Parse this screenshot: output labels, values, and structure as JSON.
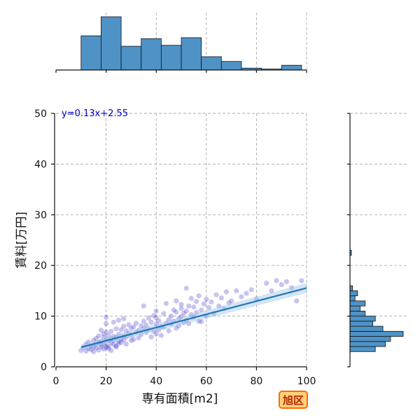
{
  "chart_data": {
    "type": "scatter",
    "xlabel": "専有面積[m2]",
    "ylabel": "賃料[万円]",
    "xlim": [
      0,
      100
    ],
    "ylim": [
      0,
      50
    ],
    "x_ticks": [
      "0",
      "20",
      "40",
      "60",
      "80",
      "100"
    ],
    "y_ticks": [
      "0",
      "10",
      "20",
      "30",
      "40",
      "50"
    ],
    "grid": true,
    "regression": {
      "slope": 0.13,
      "intercept": 2.55,
      "label": "y=0.13x+2.55",
      "x_range": [
        10,
        100
      ]
    },
    "marginal_x_histogram": {
      "bin_edges": [
        10,
        18,
        26,
        34,
        42,
        50,
        58,
        66,
        74,
        82,
        90,
        98
      ],
      "counts": [
        36,
        56,
        25,
        33,
        26,
        34,
        14,
        9,
        2,
        1,
        5
      ]
    },
    "marginal_y_histogram": {
      "bin_edges": [
        3,
        4,
        5,
        6,
        7,
        8,
        9,
        10,
        11,
        12,
        13,
        14,
        15,
        16,
        17,
        18,
        19,
        20,
        21,
        22,
        23
      ],
      "counts": [
        10,
        14,
        16,
        21,
        13,
        9,
        10,
        6,
        4,
        6,
        2,
        3,
        1,
        0,
        0,
        0,
        0,
        0,
        0,
        0
      ]
    },
    "point_color": "#3a2bc8",
    "line_color": "#1f77b4",
    "hist_color": "#4f93c6",
    "points": [
      [
        10,
        3.2
      ],
      [
        11,
        3.8
      ],
      [
        12,
        4.5
      ],
      [
        12,
        3.1
      ],
      [
        13,
        3.6
      ],
      [
        13,
        4.9
      ],
      [
        14,
        3.4
      ],
      [
        14,
        4.1
      ],
      [
        15,
        5.2
      ],
      [
        15,
        3.0
      ],
      [
        15,
        4.0
      ],
      [
        16,
        3.7
      ],
      [
        16,
        5.6
      ],
      [
        16,
        4.4
      ],
      [
        17,
        3.3
      ],
      [
        17,
        4.8
      ],
      [
        17,
        6.1
      ],
      [
        18,
        3.9
      ],
      [
        18,
        5.0
      ],
      [
        18,
        4.3
      ],
      [
        18,
        7.2
      ],
      [
        19,
        3.5
      ],
      [
        19,
        4.6
      ],
      [
        19,
        5.8
      ],
      [
        19,
        6.5
      ],
      [
        20,
        3.8
      ],
      [
        20,
        4.2
      ],
      [
        20,
        5.4
      ],
      [
        20,
        6.9
      ],
      [
        20,
        8.5
      ],
      [
        20,
        9.8
      ],
      [
        21,
        4.0
      ],
      [
        21,
        5.1
      ],
      [
        21,
        6.2
      ],
      [
        21,
        3.6
      ],
      [
        22,
        4.7
      ],
      [
        22,
        5.5
      ],
      [
        22,
        7.0
      ],
      [
        22,
        3.2
      ],
      [
        23,
        4.4
      ],
      [
        23,
        6.0
      ],
      [
        23,
        8.8
      ],
      [
        23,
        5.2
      ],
      [
        24,
        4.1
      ],
      [
        24,
        5.8
      ],
      [
        24,
        7.5
      ],
      [
        24,
        3.9
      ],
      [
        25,
        5.0
      ],
      [
        25,
        6.4
      ],
      [
        25,
        4.6
      ],
      [
        25,
        9.2
      ],
      [
        26,
        5.5
      ],
      [
        26,
        7.3
      ],
      [
        26,
        4.8
      ],
      [
        27,
        6.1
      ],
      [
        27,
        8.0
      ],
      [
        27,
        5.3
      ],
      [
        27,
        9.5
      ],
      [
        28,
        5.9
      ],
      [
        28,
        7.1
      ],
      [
        28,
        4.5
      ],
      [
        29,
        6.6
      ],
      [
        29,
        8.3
      ],
      [
        30,
        5.2
      ],
      [
        30,
        7.6
      ],
      [
        30,
        6.2
      ],
      [
        31,
        7.9
      ],
      [
        31,
        5.4
      ],
      [
        32,
        6.8
      ],
      [
        32,
        8.6
      ],
      [
        33,
        7.2
      ],
      [
        33,
        5.7
      ],
      [
        34,
        8.1
      ],
      [
        34,
        6.4
      ],
      [
        35,
        7.5
      ],
      [
        35,
        9.0
      ],
      [
        35,
        12.0
      ],
      [
        36,
        6.8
      ],
      [
        36,
        8.2
      ],
      [
        37,
        7.4
      ],
      [
        37,
        9.6
      ],
      [
        38,
        5.9
      ],
      [
        38,
        8.8
      ],
      [
        39,
        7.0
      ],
      [
        39,
        10.1
      ],
      [
        40,
        6.5
      ],
      [
        40,
        8.4
      ],
      [
        40,
        9.7
      ],
      [
        40,
        11.0
      ],
      [
        41,
        7.3
      ],
      [
        41,
        9.1
      ],
      [
        42,
        8.0
      ],
      [
        42,
        6.2
      ],
      [
        43,
        10.5
      ],
      [
        43,
        7.8
      ],
      [
        44,
        8.6
      ],
      [
        44,
        12.5
      ],
      [
        45,
        9.3
      ],
      [
        45,
        7.1
      ],
      [
        46,
        10.0
      ],
      [
        46,
        8.4
      ],
      [
        47,
        11.2
      ],
      [
        47,
        9.0
      ],
      [
        48,
        7.6
      ],
      [
        48,
        10.8
      ],
      [
        48,
        13.0
      ],
      [
        49,
        9.5
      ],
      [
        49,
        8.1
      ],
      [
        50,
        11.5
      ],
      [
        50,
        9.9
      ],
      [
        50,
        12.3
      ],
      [
        51,
        8.7
      ],
      [
        51,
        10.6
      ],
      [
        52,
        15.5
      ],
      [
        52,
        11.0
      ],
      [
        52,
        9.2
      ],
      [
        53,
        12.0
      ],
      [
        53,
        8.5
      ],
      [
        54,
        10.3
      ],
      [
        54,
        13.5
      ],
      [
        55,
        9.8
      ],
      [
        55,
        11.8
      ],
      [
        56,
        10.7
      ],
      [
        56,
        12.9
      ],
      [
        57,
        9.0
      ],
      [
        57,
        14.0
      ],
      [
        58,
        11.2
      ],
      [
        58,
        8.9
      ],
      [
        59,
        12.4
      ],
      [
        60,
        10.0
      ],
      [
        60,
        13.3
      ],
      [
        61,
        11.7
      ],
      [
        62,
        12.8
      ],
      [
        63,
        10.5
      ],
      [
        64,
        14.2
      ],
      [
        65,
        12.0
      ],
      [
        66,
        13.6
      ],
      [
        67,
        11.5
      ],
      [
        68,
        14.8
      ],
      [
        69,
        12.6
      ],
      [
        70,
        13.0
      ],
      [
        72,
        15.0
      ],
      [
        74,
        13.8
      ],
      [
        76,
        14.5
      ],
      [
        78,
        15.2
      ],
      [
        80,
        13.4
      ],
      [
        84,
        16.5
      ],
      [
        86,
        15.0
      ],
      [
        88,
        17.0
      ],
      [
        90,
        16.2
      ],
      [
        92,
        16.8
      ],
      [
        94,
        15.6
      ],
      [
        96,
        13.0
      ],
      [
        98,
        17.0
      ]
    ]
  },
  "legend_badge": "旭区"
}
